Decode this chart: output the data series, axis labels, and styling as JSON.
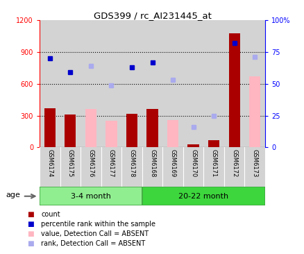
{
  "title": "GDS399 / rc_AI231445_at",
  "samples": [
    "GSM6174",
    "GSM6175",
    "GSM6176",
    "GSM6177",
    "GSM6178",
    "GSM6168",
    "GSM6169",
    "GSM6170",
    "GSM6171",
    "GSM6172",
    "GSM6173"
  ],
  "group1_label": "3-4 month",
  "group2_label": "20-22 month",
  "group1_color": "#90EE90",
  "group2_color": "#3DD63D",
  "group1_n": 5,
  "group2_n": 6,
  "count_values": [
    370,
    310,
    null,
    null,
    315,
    365,
    null,
    30,
    65,
    1080,
    null
  ],
  "rank_values_pct": [
    70,
    59,
    null,
    null,
    63,
    67,
    null,
    null,
    null,
    82,
    null
  ],
  "absent_value": [
    null,
    null,
    360,
    250,
    null,
    null,
    255,
    null,
    null,
    null,
    670
  ],
  "absent_rank_pct": [
    null,
    null,
    64,
    49,
    null,
    null,
    53,
    16,
    25,
    null,
    71
  ],
  "left_ylim": [
    0,
    1200
  ],
  "right_ylim": [
    0,
    100
  ],
  "left_yticks": [
    0,
    300,
    600,
    900,
    1200
  ],
  "right_yticks": [
    0,
    25,
    50,
    75,
    100
  ],
  "right_yticklabels": [
    "0",
    "25",
    "50",
    "75",
    "100%"
  ],
  "hlines": [
    300,
    600,
    900
  ],
  "bar_color_present": "#AA0000",
  "bar_color_absent": "#FFB6C1",
  "dot_color_present": "#0000CC",
  "dot_color_absent": "#AAAAEE",
  "bg_color": "#D3D3D3",
  "age_label": "age",
  "legend_items": [
    {
      "color": "#AA0000",
      "label": "count"
    },
    {
      "color": "#0000CC",
      "label": "percentile rank within the sample"
    },
    {
      "color": "#FFB6C1",
      "label": "value, Detection Call = ABSENT"
    },
    {
      "color": "#AAAAEE",
      "label": "rank, Detection Call = ABSENT"
    }
  ]
}
